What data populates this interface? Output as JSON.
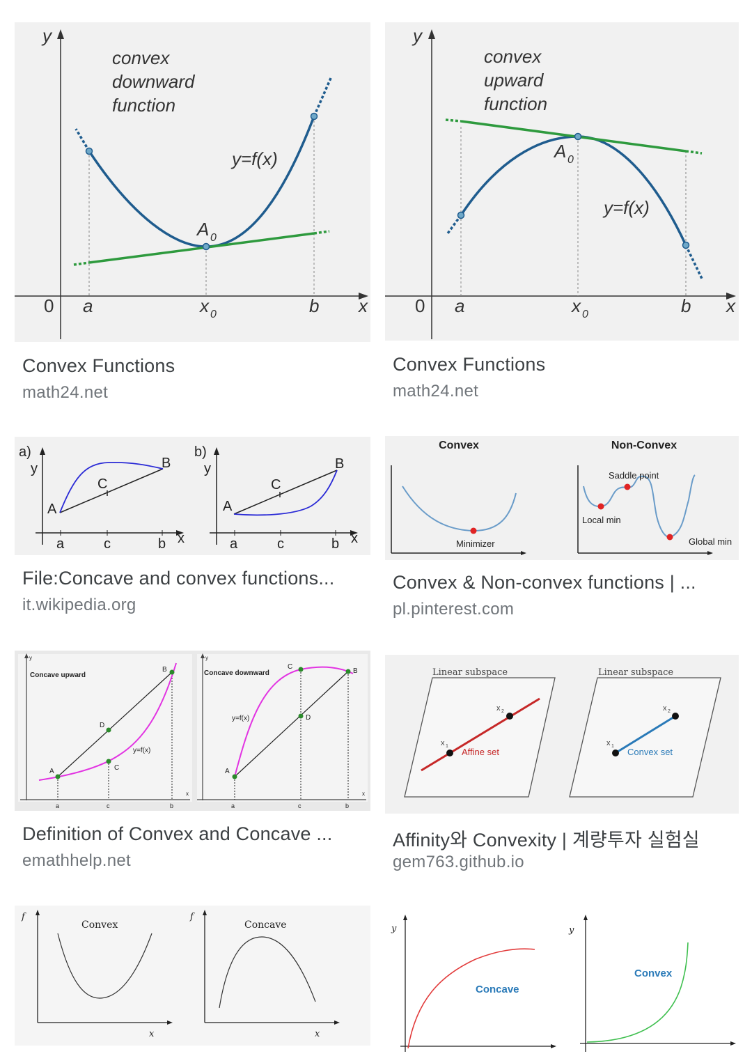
{
  "results": [
    {
      "title": "Convex Functions",
      "source": "math24.net",
      "image": {
        "label_y": "y",
        "label_x": "x",
        "label_origin": "0",
        "label_a": "a",
        "label_x0": "x",
        "label_x0_sub": "0",
        "label_b": "b",
        "caption_lines": [
          "convex",
          "downward",
          "function"
        ],
        "curve_label": "y=f(x)",
        "point_label": "A",
        "point_label_sub": "0",
        "colors": {
          "curve": "#1f5c8e",
          "tangent": "#2e9a3e"
        }
      }
    },
    {
      "title": "Convex Functions",
      "source": "math24.net",
      "image": {
        "label_y": "y",
        "label_x": "x",
        "label_origin": "0",
        "label_a": "a",
        "label_x0": "x",
        "label_x0_sub": "0",
        "label_b": "b",
        "caption_lines": [
          "convex",
          "upward",
          "function"
        ],
        "curve_label": "y=f(x)",
        "point_label": "A",
        "point_label_sub": "0"
      }
    },
    {
      "title": "File:Concave and convex functions...",
      "source": "it.wikipedia.org",
      "image": {
        "panel_a": {
          "tag": "a)",
          "y": "y",
          "x": "x",
          "A": "A",
          "B": "B",
          "C": "C",
          "tick_a": "a",
          "tick_c": "c",
          "tick_b": "b"
        },
        "panel_b": {
          "tag": "b)",
          "y": "y",
          "x": "x",
          "A": "A",
          "B": "B",
          "C": "C",
          "tick_a": "a",
          "tick_c": "c",
          "tick_b": "b"
        },
        "colors": {
          "curve": "#2a2ad6"
        }
      }
    },
    {
      "title": "Convex & Non-convex functions | ...",
      "source": "pl.pinterest.com",
      "image": {
        "left_heading": "Convex",
        "right_heading": "Non-Convex",
        "minimizer": "Minimizer",
        "saddle_point": "Saddle point",
        "local_min": "Local min",
        "global_min": "Global min",
        "colors": {
          "curve": "#6a9cc9",
          "marker": "#e02424"
        }
      }
    },
    {
      "title": "Definition of Convex and Concave ...",
      "source": "emathhelp.net",
      "image": {
        "left": {
          "heading": "Concave upward",
          "y": "y",
          "x": "x",
          "curve": "y=f(x)",
          "A": "A",
          "B": "B",
          "C": "C",
          "D": "D",
          "tick_a": "a",
          "tick_c": "c",
          "tick_b": "b"
        },
        "right": {
          "heading": "Concave downward",
          "y": "y",
          "x": "x",
          "curve": "y=f(x)",
          "A": "A",
          "B": "B",
          "C": "C",
          "D": "D",
          "tick_a": "a",
          "tick_c": "c",
          "tick_b": "b"
        },
        "colors": {
          "curve": "#e233e2",
          "point": "#2b8a2b"
        }
      }
    },
    {
      "title": "Affinity와 Convexity | 계량투자 실험실",
      "source": "gem763.github.io",
      "image": {
        "left": {
          "heading": "Linear subspace",
          "x1": "x",
          "x1_sub": "1",
          "x2": "x",
          "x2_sub": "2",
          "set_label": "Affine set"
        },
        "right": {
          "heading": "Linear subspace",
          "x1": "x",
          "x1_sub": "1",
          "x2": "x",
          "x2_sub": "2",
          "set_label": "Convex set"
        },
        "colors": {
          "affine": "#c62828",
          "convex": "#2a7ab8"
        }
      }
    },
    {
      "image": {
        "left": {
          "f": "f",
          "x": "x",
          "heading": "Convex"
        },
        "right": {
          "f": "f",
          "x": "x",
          "heading": "Concave"
        }
      }
    },
    {
      "image": {
        "left": {
          "y": "y",
          "label": "Concave"
        },
        "right": {
          "y": "y",
          "label": "Convex"
        },
        "colors": {
          "concave": "#e23b3b",
          "convex": "#3fbf4f"
        }
      }
    }
  ]
}
